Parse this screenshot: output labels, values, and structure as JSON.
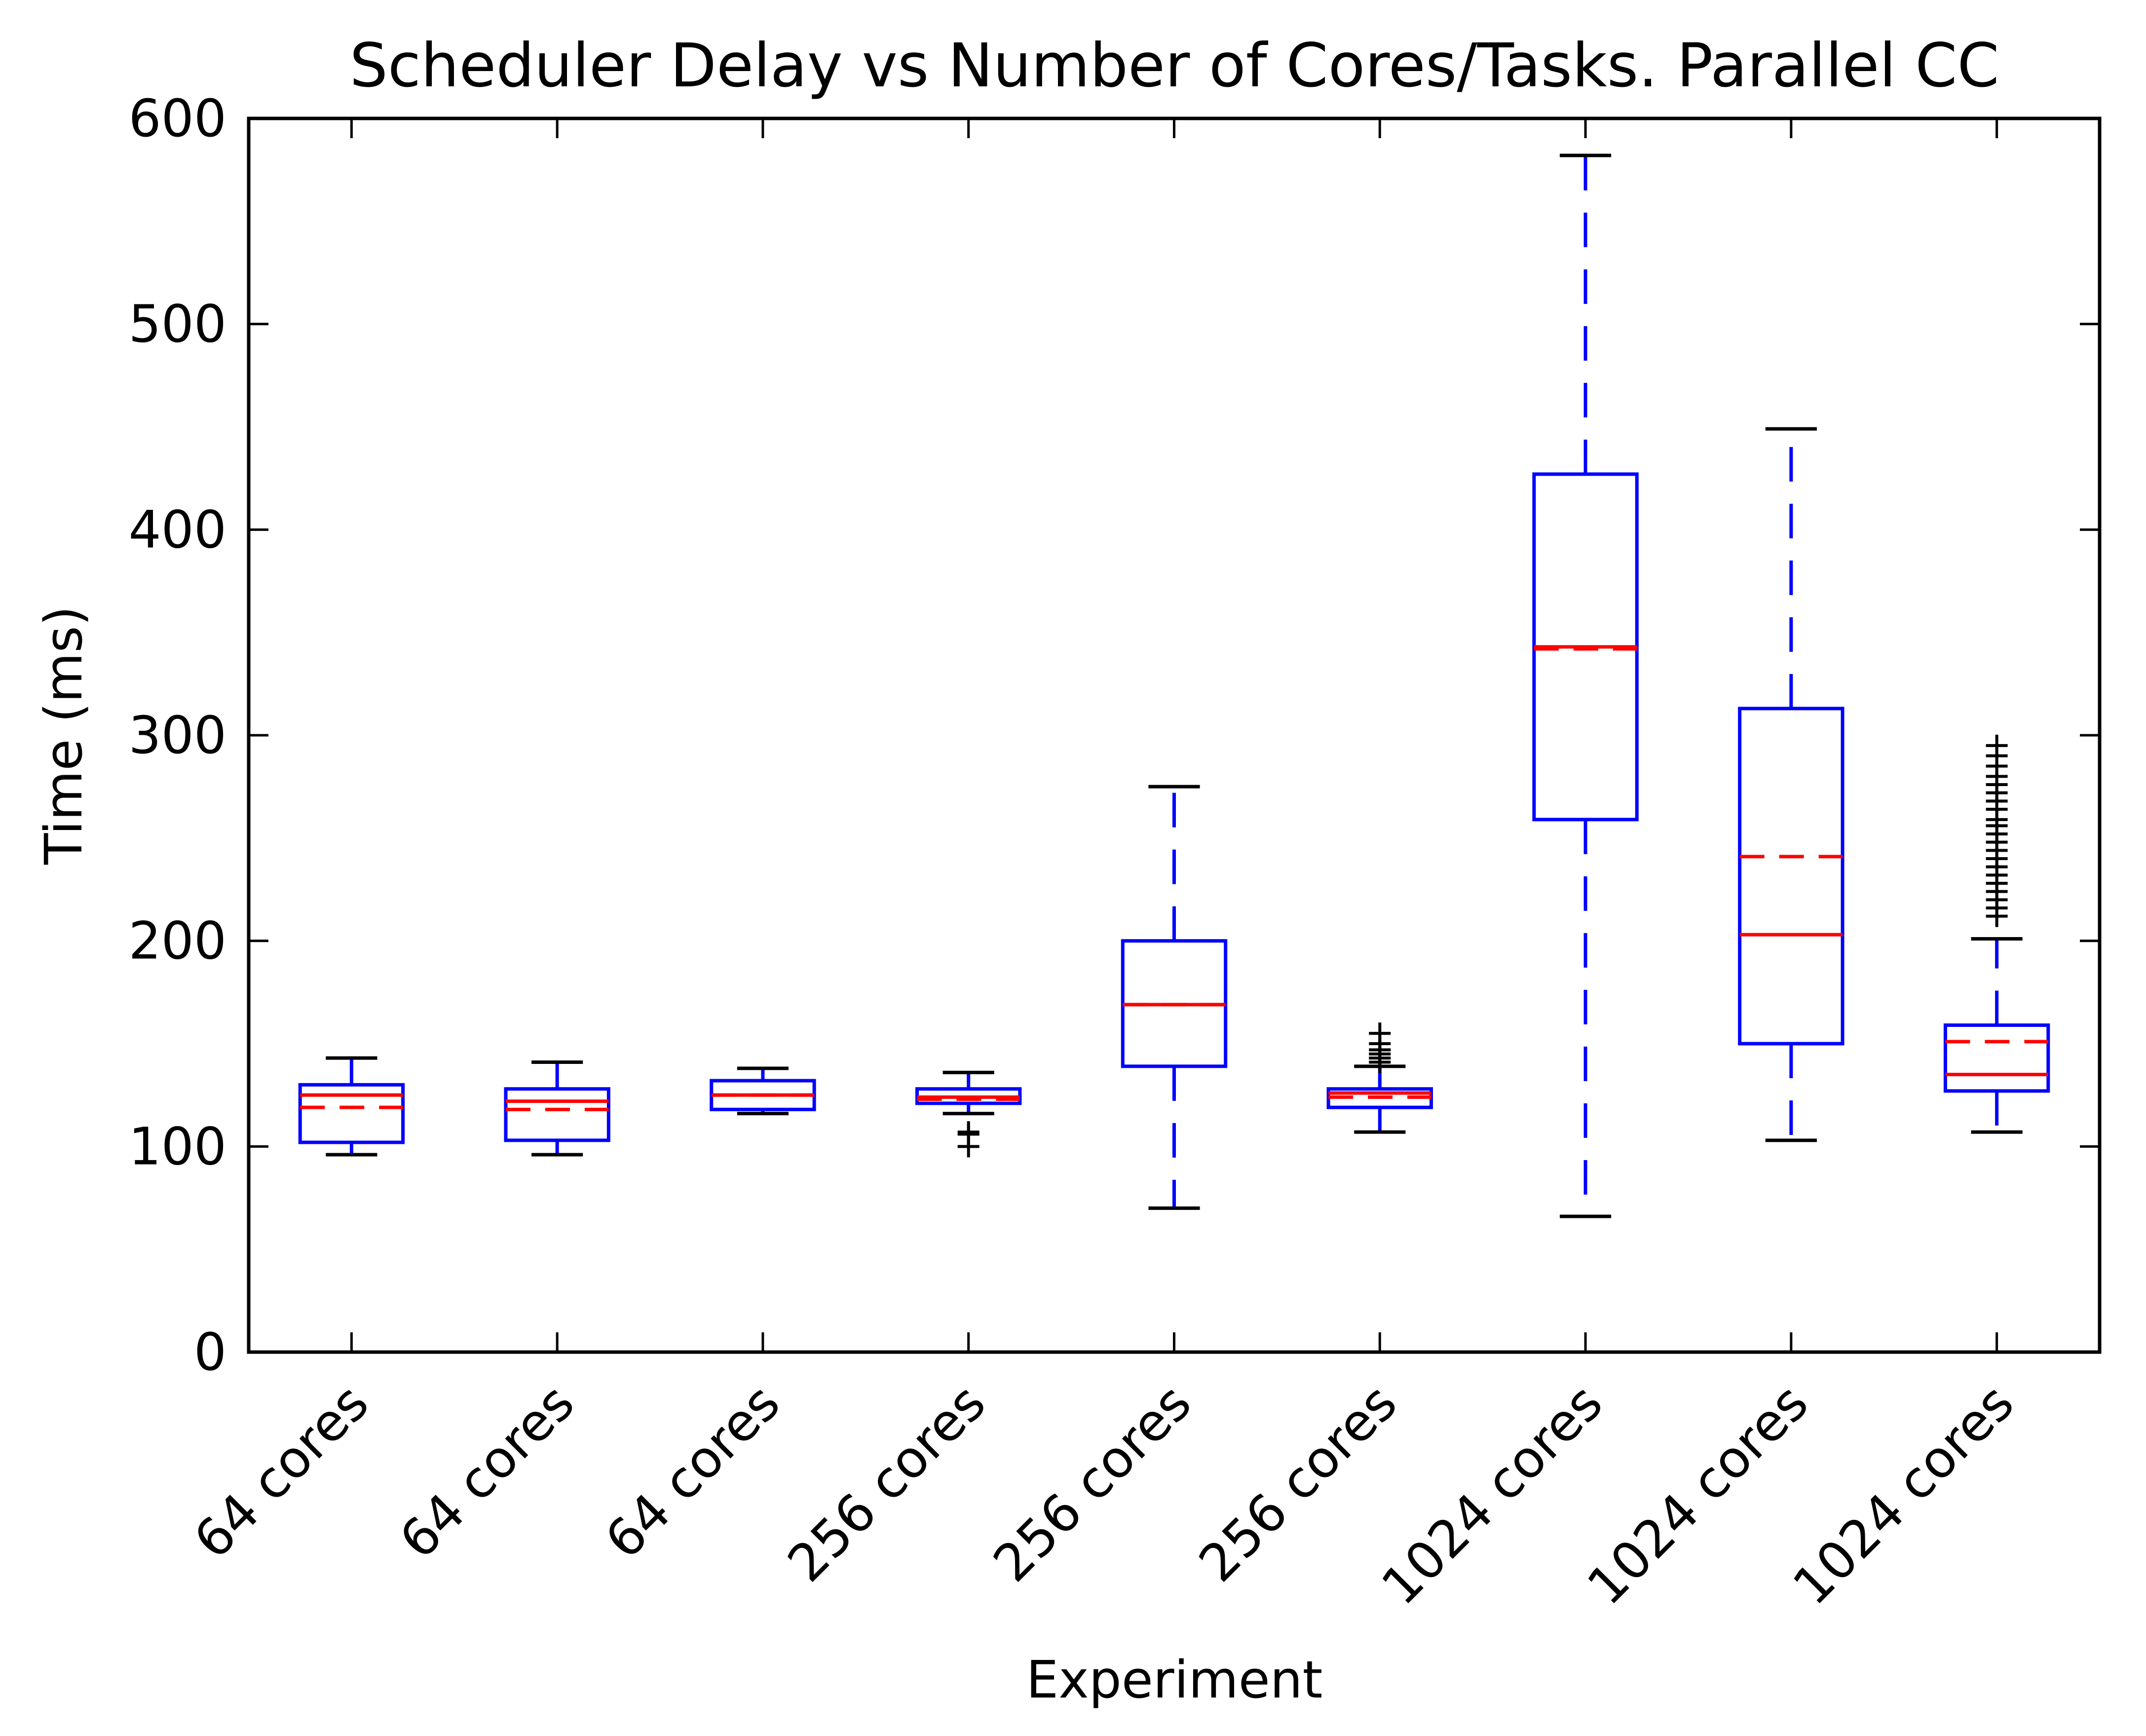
{
  "chart_data": {
    "type": "box",
    "title": "Scheduler Delay vs Number of Cores/Tasks. Parallel CC",
    "xlabel": "Experiment",
    "ylabel": "Time (ms)",
    "ylim": [
      0,
      600
    ],
    "yticks": [
      0,
      100,
      200,
      300,
      400,
      500,
      600
    ],
    "categories": [
      "64 cores",
      "64 cores",
      "64 cores",
      "256 cores",
      "256 cores",
      "256 cores",
      "1024 cores",
      "1024 cores",
      "1024 cores"
    ],
    "grid": false,
    "legend": "none",
    "colors": {
      "box": "#0000ff",
      "median": "#ff0000",
      "mean": "#ff0000",
      "whisker_cap": "#000000",
      "flier": "#000000",
      "axes": "#000000"
    },
    "boxes": [
      {
        "whislo": 96,
        "q1": 102,
        "med": 125,
        "mean": 119,
        "q3": 130,
        "whishi": 143,
        "fliers": []
      },
      {
        "whislo": 96,
        "q1": 103,
        "med": 122,
        "mean": 118,
        "q3": 128,
        "whishi": 141,
        "fliers": []
      },
      {
        "whislo": 116,
        "q1": 118,
        "med": 125,
        "mean": 125,
        "q3": 132,
        "whishi": 138,
        "fliers": []
      },
      {
        "whislo": 116,
        "q1": 121,
        "med": 124,
        "mean": 123,
        "q3": 128,
        "whishi": 136,
        "fliers": [
          107,
          106,
          100
        ]
      },
      {
        "whislo": 70,
        "q1": 139,
        "med": 169,
        "mean": 169,
        "q3": 200,
        "whishi": 275,
        "fliers": []
      },
      {
        "whislo": 107,
        "q1": 119,
        "med": 126,
        "mean": 124,
        "q3": 128,
        "whishi": 139,
        "fliers": [
          141,
          143,
          145,
          147,
          150,
          155
        ]
      },
      {
        "whislo": 66,
        "q1": 259,
        "med": 343,
        "mean": 342,
        "q3": 427,
        "whishi": 582,
        "fliers": []
      },
      {
        "whislo": 103,
        "q1": 150,
        "med": 203,
        "mean": 241,
        "q3": 313,
        "whishi": 449,
        "fliers": []
      },
      {
        "whislo": 107,
        "q1": 127,
        "med": 135,
        "mean": 151,
        "q3": 159,
        "whishi": 201,
        "fliers": [
          212,
          216,
          220,
          224,
          228,
          232,
          236,
          240,
          244,
          248,
          252,
          256,
          259,
          264,
          268,
          272,
          276,
          280,
          285,
          290,
          295
        ]
      }
    ]
  }
}
